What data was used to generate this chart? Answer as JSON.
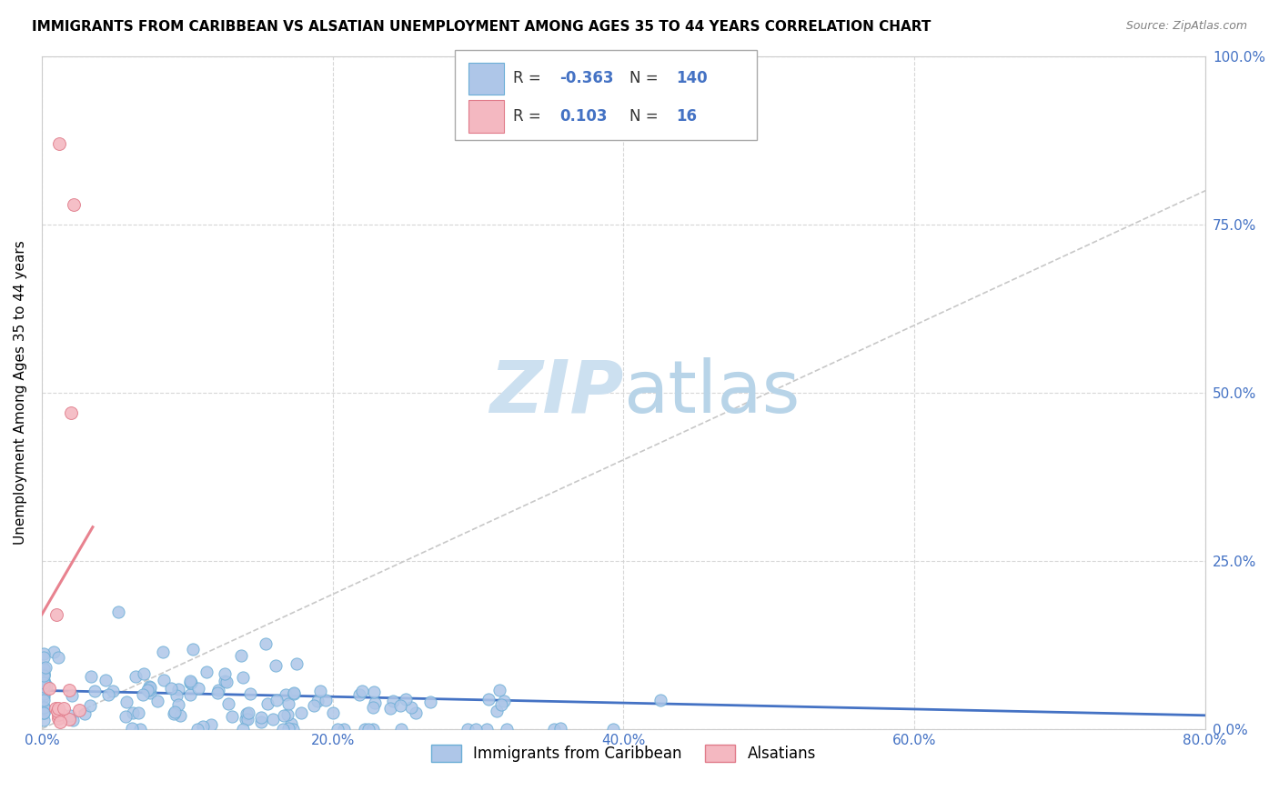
{
  "title": "IMMIGRANTS FROM CARIBBEAN VS ALSATIAN UNEMPLOYMENT AMONG AGES 35 TO 44 YEARS CORRELATION CHART",
  "source": "Source: ZipAtlas.com",
  "xlabel": "Immigrants from Caribbean",
  "ylabel": "Unemployment Among Ages 35 to 44 years",
  "xlim": [
    0,
    0.8
  ],
  "ylim": [
    0,
    1.0
  ],
  "xticks": [
    0.0,
    0.2,
    0.4,
    0.6,
    0.8
  ],
  "yticks": [
    0.0,
    0.25,
    0.5,
    0.75,
    1.0
  ],
  "xtick_labels": [
    "0.0%",
    "20.0%",
    "40.0%",
    "60.0%",
    "80.0%"
  ],
  "ytick_labels": [
    "0.0%",
    "25.0%",
    "50.0%",
    "75.0%",
    "100.0%"
  ],
  "blue_R": -0.363,
  "blue_N": 140,
  "pink_R": 0.103,
  "pink_N": 16,
  "blue_color": "#aec6e8",
  "blue_edge": "#6baed6",
  "pink_color": "#f4b8c1",
  "pink_edge": "#e07b8a",
  "blue_line_color": "#4472c4",
  "pink_line_color": "#e8828f",
  "diagonal_color": "#c8c8c8",
  "watermark_color": "#cce0f0",
  "background_color": "#ffffff",
  "grid_color": "#d3d3d3",
  "title_fontsize": 11,
  "source_fontsize": 9,
  "axis_label_fontsize": 11,
  "tick_fontsize": 11,
  "legend_fontsize": 12,
  "tick_color": "#4472c4"
}
